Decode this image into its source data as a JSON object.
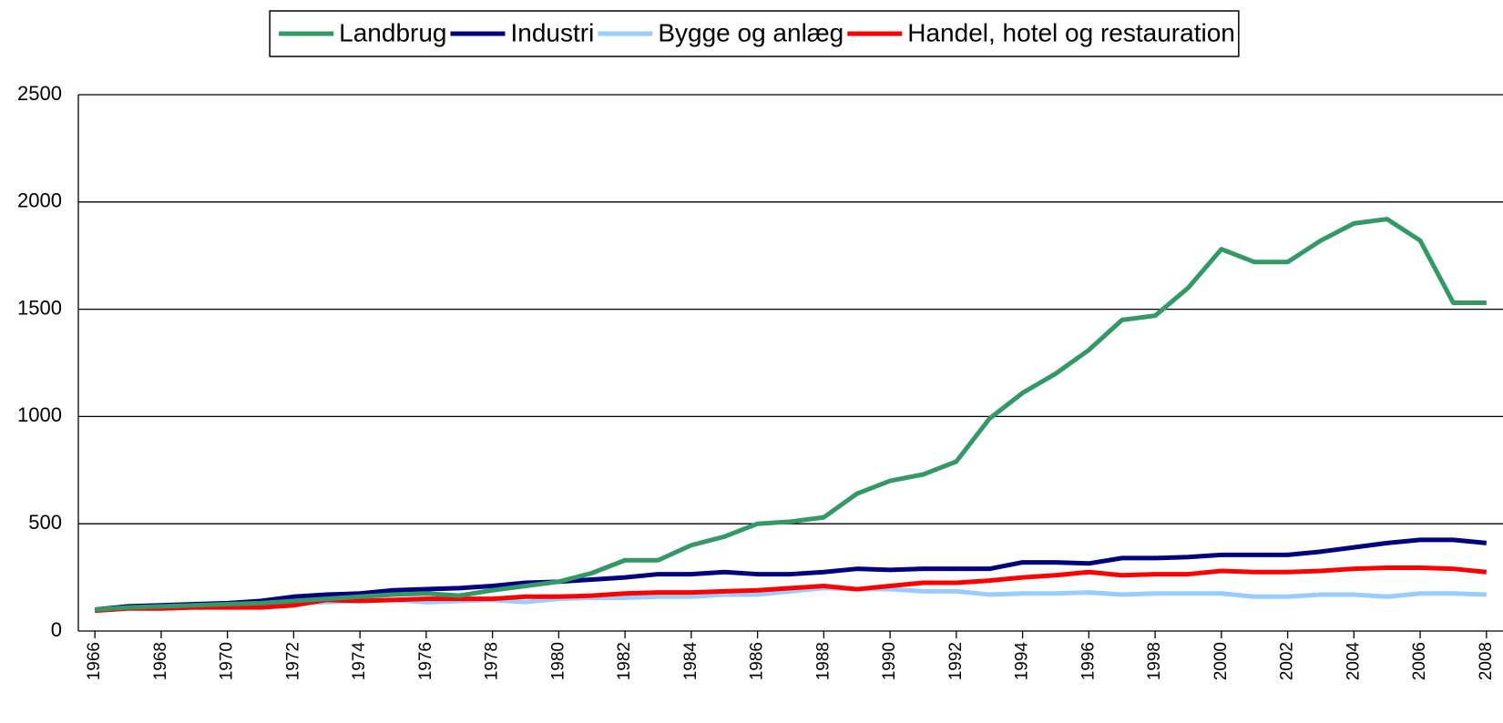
{
  "chart_data": {
    "type": "line",
    "x": [
      1966,
      1967,
      1968,
      1969,
      1970,
      1971,
      1972,
      1973,
      1974,
      1975,
      1976,
      1977,
      1978,
      1979,
      1980,
      1981,
      1982,
      1983,
      1984,
      1985,
      1986,
      1987,
      1988,
      1989,
      1990,
      1991,
      1992,
      1993,
      1994,
      1995,
      1996,
      1997,
      1998,
      1999,
      2000,
      2001,
      2002,
      2003,
      2004,
      2005,
      2006,
      2007,
      2008
    ],
    "xlim": [
      1965.5,
      2008.5
    ],
    "xticks": [
      1966,
      1968,
      1970,
      1972,
      1974,
      1976,
      1978,
      1980,
      1982,
      1984,
      1986,
      1988,
      1990,
      1992,
      1994,
      1996,
      1998,
      2000,
      2002,
      2004,
      2006,
      2008
    ],
    "ylim": [
      0,
      2500
    ],
    "yticks": [
      0,
      500,
      1000,
      1500,
      2000,
      2500
    ],
    "grid": true,
    "legend": "top",
    "series": [
      {
        "name": "Landbrug",
        "color": "#339966",
        "values": [
          100,
          110,
          115,
          120,
          125,
          130,
          140,
          150,
          160,
          170,
          175,
          165,
          190,
          210,
          230,
          270,
          330,
          330,
          400,
          440,
          500,
          510,
          530,
          640,
          700,
          730,
          790,
          990,
          1110,
          1200,
          1310,
          1450,
          1470,
          1600,
          1780,
          1720,
          1720,
          1820,
          1900,
          1920,
          1820,
          1530,
          1530
        ]
      },
      {
        "name": "Industri",
        "color": "#000080",
        "values": [
          100,
          115,
          120,
          125,
          130,
          140,
          160,
          170,
          175,
          190,
          195,
          200,
          210,
          225,
          230,
          240,
          250,
          265,
          265,
          275,
          265,
          265,
          275,
          290,
          285,
          290,
          290,
          290,
          320,
          320,
          315,
          340,
          340,
          345,
          355,
          355,
          355,
          370,
          390,
          410,
          425,
          425,
          410
        ]
      },
      {
        "name": "Bygge og anlæg",
        "color": "#99ccff",
        "values": [
          100,
          110,
          110,
          115,
          120,
          125,
          130,
          135,
          140,
          145,
          135,
          140,
          145,
          135,
          150,
          155,
          155,
          160,
          160,
          170,
          170,
          185,
          200,
          195,
          195,
          185,
          185,
          170,
          175,
          175,
          180,
          170,
          175,
          175,
          175,
          160,
          160,
          170,
          170,
          160,
          175,
          175,
          170
        ]
      },
      {
        "name": "Handel, hotel og restauration",
        "color": "#ff0000",
        "values": [
          95,
          105,
          105,
          110,
          110,
          110,
          120,
          145,
          140,
          145,
          150,
          150,
          150,
          160,
          160,
          165,
          175,
          180,
          180,
          185,
          190,
          200,
          210,
          195,
          210,
          225,
          225,
          235,
          250,
          260,
          275,
          260,
          265,
          265,
          280,
          275,
          275,
          280,
          290,
          295,
          295,
          290,
          275
        ]
      }
    ]
  }
}
